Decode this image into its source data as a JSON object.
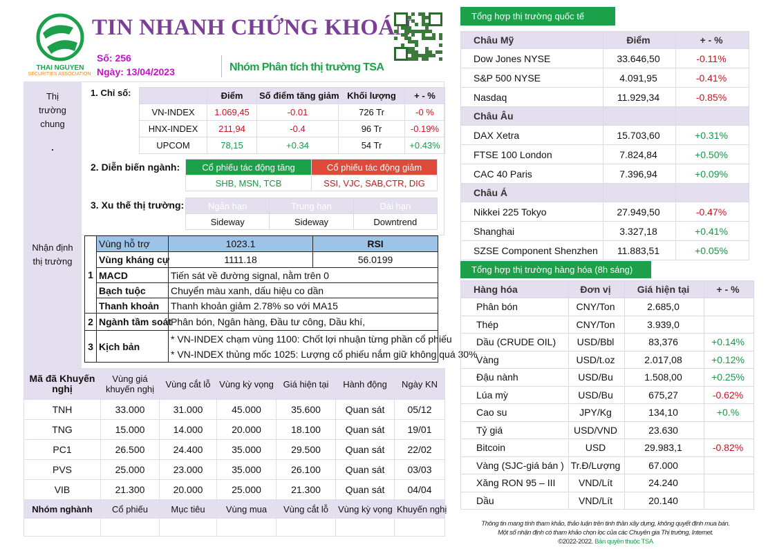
{
  "header": {
    "title": "TIN NHANH CHỨNG  KHOÁN",
    "issue": "Số: 256",
    "date": "Ngày: 13/04/2023",
    "group": "Nhóm Phân tích thị trường TSA",
    "logo_text": "THAI NGUYEN",
    "logo_sub": "SECURITIES ASSOCIATION"
  },
  "colors": {
    "title": "#7b3f98",
    "green": "#1da04a",
    "red": "#d0101e",
    "lavender": "#e4dfee",
    "blue": "#9dc3e6"
  },
  "side": {
    "market": "Thị trường chung",
    "dot": ".",
    "outlook": "Nhận định thị trường"
  },
  "indices": {
    "label": "1. Chỉ số:",
    "headers": [
      "",
      "Điểm",
      "Số điểm tăng giảm",
      "Khối lượng",
      "+ - %"
    ],
    "rows": [
      [
        "VN-INDEX",
        "1.069,45",
        "-0.01",
        "726 Tr",
        "-0 %",
        "red"
      ],
      [
        "HNX-INDEX",
        "211,94",
        "-0.4",
        "96 Tr",
        "-0.19%",
        "red"
      ],
      [
        "UPCOM",
        "78,15",
        "+0.34",
        "54 Tr",
        "+0.43%",
        "green"
      ]
    ]
  },
  "sectors": {
    "label": "2.  Diễn biến ngành:",
    "up_header": "Cổ phiếu tác động tăng",
    "down_header": "Cổ phiếu tác động giảm",
    "up": "SHB, MSN, TCB",
    "down": "SSI, VJC, SAB,CTR, DIG"
  },
  "trend": {
    "label": "3.  Xu thế thị trường:",
    "headers": [
      "Ngắn hạn",
      "Trung hạn",
      "Dài hạn"
    ],
    "values": [
      "Sideway",
      "Sideway",
      "Downtrend"
    ]
  },
  "analysis": {
    "n1": "1",
    "n2": "2",
    "n3": "3",
    "support_label": "Vùng hỗ trợ",
    "support": "1023.1",
    "rsi_label": "RSI",
    "resist_label": "Vùng kháng cự",
    "resist": "1111.18",
    "rsi": "56.0199",
    "macd_label": "MACD",
    "macd": "Tiến sát về đường signal, nằm trên 0",
    "octo_label": "Bạch tuộc",
    "octo": "Chuyển màu xanh, dấu hiệu co dần",
    "liq_label": "Thanh khoản",
    "liq": "Thanh khoản giảm  2.78% so với MA15",
    "watch_label": "Ngành tầm soát",
    "watch": " Phân bón, Ngân hàng, Đầu tư công, Dầu khí,",
    "scen_label": "Kịch bản",
    "scen1": "* VN-INDEX chạm vùng 1100: Chốt lợi nhuận từng phần cổ phiếu",
    "scen2": "* VN-INDEX thủng mốc 1025: Lượng cổ phiếu nắm giữ không quá 30%"
  },
  "recs": {
    "headers": [
      "Mã đã Khuyến nghị",
      "Vùng giá khuyến nghị",
      "Vùng cắt lỗ",
      "Vùng kỳ vọng",
      "Giá hiện tại",
      "Hành động",
      "Ngày KN"
    ],
    "rows": [
      [
        "TNH",
        "33.000",
        "31.000",
        "45.000",
        "35.600",
        "Quan sát",
        "05/12"
      ],
      [
        "TNG",
        "15.000",
        "14.000",
        "20.000",
        "18.100",
        "Quan sát",
        "19/01"
      ],
      [
        "PC1",
        "26.500",
        "24.400",
        "35.000",
        "29.500",
        "Quan sát",
        "22/02"
      ],
      [
        "PVS",
        "25.000",
        "23.000",
        "35.000",
        "26.100",
        "Quan sát",
        "03/03"
      ],
      [
        "VIB",
        "21.300",
        "20.000",
        "25.000",
        "21.300",
        "Quan sát",
        "04/04"
      ]
    ],
    "headers2": [
      "Nhóm nghành",
      "Cổ phiếu",
      "Mục tiêu",
      "Vùng mua",
      "Vùng cắt lỗ",
      "Vùng kỳ vọng",
      "Khuyến nghị"
    ]
  },
  "intl": {
    "title": "Tổng hợp thị trường quốc tế",
    "headers": [
      "Châu Mỹ",
      "Điểm",
      "+ - %"
    ],
    "rows": [
      [
        "Dow Jones NYSE",
        "33.646,50",
        "-0.11%",
        "red"
      ],
      [
        "S&P 500 NYSE",
        "4.091,95",
        "-0.41%",
        "red"
      ],
      [
        "Nasdaq",
        "11.929,34",
        "-0.85%",
        "red"
      ],
      [
        "Châu Âu",
        "",
        "",
        "grp"
      ],
      [
        "DAX Xetra",
        "15.703,60",
        "+0.31%",
        "green"
      ],
      [
        "FTSE 100 London",
        "7.824,84",
        "+0.50%",
        "green"
      ],
      [
        "CAC 40 Paris",
        "7.396,94",
        "+0.09%",
        "green"
      ],
      [
        "Châu Á",
        "",
        "",
        "grp"
      ],
      [
        "Nikkei 225  Tokyo",
        "27.949,50",
        "-0.47%",
        "red"
      ],
      [
        "Shanghai",
        "3.327,18",
        "+0.41%",
        "green"
      ],
      [
        "SZSE Component Shenzhen",
        "11.883,51",
        "+0.05%",
        "green"
      ]
    ]
  },
  "commod": {
    "title": "Tổng hợp thị trường hàng hóa (8h  sáng)",
    "headers": [
      "Hàng hóa",
      "Đơn vị",
      "Giá hiện tại",
      "+ - %"
    ],
    "rows": [
      [
        "Phân bón",
        "CNY/Ton",
        "2.685,0",
        ""
      ],
      [
        "Thép",
        "CNY/Ton",
        "3.939,0",
        ""
      ],
      [
        "Dầu (CRUDE OIL)",
        "USD/Bbl",
        "83,376",
        "+0.14%"
      ],
      [
        "Vàng",
        "USD/t.oz",
        "2.017,08",
        "+0.12%"
      ],
      [
        "Đậu nành",
        "USD/Bu",
        "1.508,00",
        "+0.25%"
      ],
      [
        "Lúa mỳ",
        "USD/Bu",
        "675,27",
        "-0.62%"
      ],
      [
        "Cao su",
        "JPY/Kg",
        "134,10",
        "+0.%"
      ],
      [
        "Tỷ giá",
        "USD/VND",
        "23.630",
        ""
      ],
      [
        "Bitcoin",
        "USD",
        "29.983,1",
        "-0.82%"
      ],
      [
        "Vàng (SJC-giá bán )",
        "Tr.Đ/Lượng",
        "67.000",
        ""
      ],
      [
        "Xăng RON 95 – III",
        "VND/Lít",
        "24.240",
        ""
      ],
      [
        "Dầu",
        "VND/Lít",
        "20.140",
        ""
      ]
    ]
  },
  "footer": {
    "line1": "Thông tin mang tính tham khảo, thảo luận trên tinh thần xây dựng, không quyết định mua bán.",
    "line2": "Một số nhận định có tham khảo chọn lọc của các Chuyên gia Thị trường, Internet.",
    "copy": "©2022-2022.",
    "rights": "Bản quyền thuộc TSA"
  }
}
